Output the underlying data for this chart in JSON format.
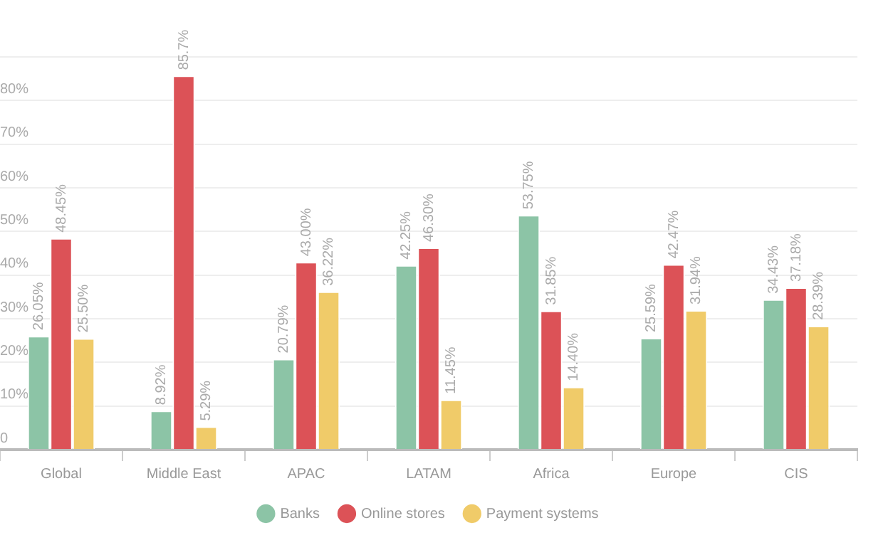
{
  "chart_data": {
    "type": "bar",
    "categories": [
      "Global",
      "Middle East",
      "APAC",
      "LATAM",
      "Africa",
      "Europe",
      "CIS"
    ],
    "series": [
      {
        "name": "Banks",
        "color": "#8cc4a6",
        "values": [
          26.05,
          8.92,
          20.79,
          42.25,
          53.75,
          25.59,
          34.43
        ],
        "value_labels": [
          "26.05%",
          "8.92%",
          "20.79%",
          "42.25%",
          "53.75%",
          "25.59%",
          "34.43%"
        ]
      },
      {
        "name": "Online stores",
        "color": "#dc5257",
        "values": [
          48.45,
          85.7,
          43.0,
          46.3,
          31.85,
          42.47,
          37.18
        ],
        "value_labels": [
          "48.45%",
          "85.7%",
          "43.00%",
          "46.30%",
          "31.85%",
          "42.47%",
          "37.18%"
        ]
      },
      {
        "name": "Payment systems",
        "color": "#f0cb69",
        "values": [
          25.5,
          5.29,
          36.22,
          11.45,
          14.4,
          31.94,
          28.39
        ],
        "value_labels": [
          "25.50%",
          "5.29%",
          "36.22%",
          "11.45%",
          "14.40%",
          "31.94%",
          "28.39%"
        ]
      }
    ],
    "ylim": [
      0,
      90
    ],
    "yticks": [
      {
        "value": 0,
        "label": "0"
      },
      {
        "value": 10,
        "label": "10%"
      },
      {
        "value": 20,
        "label": "20%"
      },
      {
        "value": 30,
        "label": "30%"
      },
      {
        "value": 40,
        "label": "40%"
      },
      {
        "value": 50,
        "label": "50%"
      },
      {
        "value": 60,
        "label": "60%"
      },
      {
        "value": 70,
        "label": "70%"
      },
      {
        "value": 80,
        "label": "80%"
      },
      {
        "value": 90,
        "label": null
      }
    ],
    "grid": "y",
    "legend": "bottom"
  }
}
